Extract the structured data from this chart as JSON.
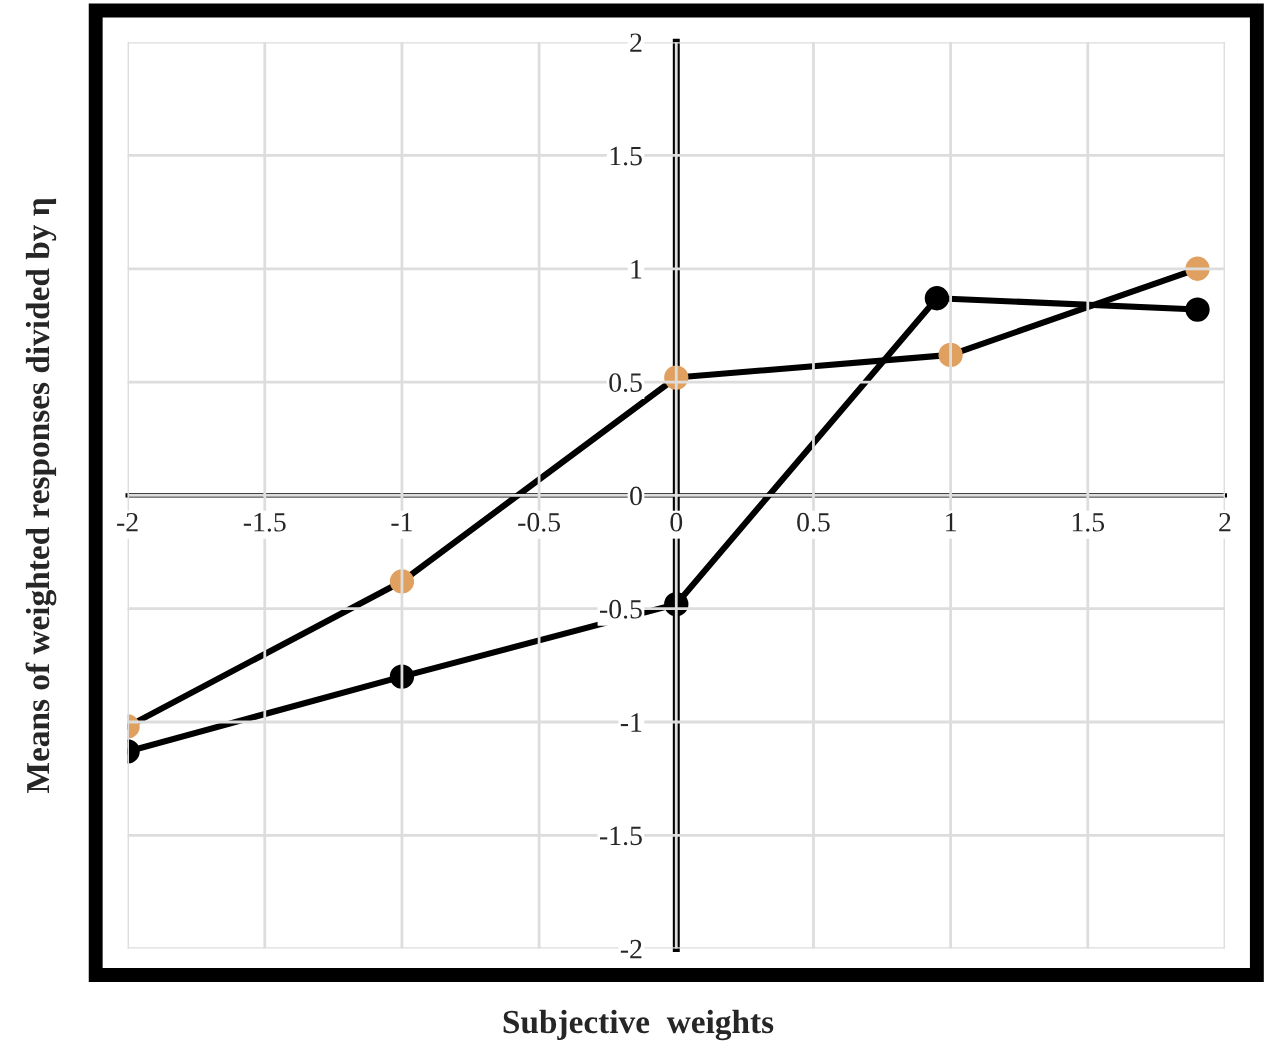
{
  "chart_data": {
    "type": "line",
    "xlabel": "Subjective  weights",
    "ylabel": "Means of weighted responses divided by η",
    "xlim": [
      -2,
      2
    ],
    "ylim": [
      -2,
      2
    ],
    "xticks": [
      -2,
      -1.5,
      -1,
      -0.5,
      0,
      0.5,
      1,
      1.5,
      2
    ],
    "yticks": [
      -2,
      -1.5,
      -1,
      -0.5,
      0,
      0.5,
      1,
      1.5,
      2
    ],
    "grid": true,
    "marker": "circle",
    "line_style": "solid",
    "series": [
      {
        "color": "#000000",
        "x": [
          -2,
          -1,
          0,
          0.95,
          1.9
        ],
        "values": [
          -1.13,
          -0.8,
          -0.48,
          0.87,
          0.82
        ]
      },
      {
        "color": "#e0a060",
        "x": [
          -2,
          -1,
          0,
          1,
          1.9
        ],
        "values": [
          -1.02,
          -0.38,
          0.52,
          0.62,
          1.0
        ]
      }
    ]
  }
}
